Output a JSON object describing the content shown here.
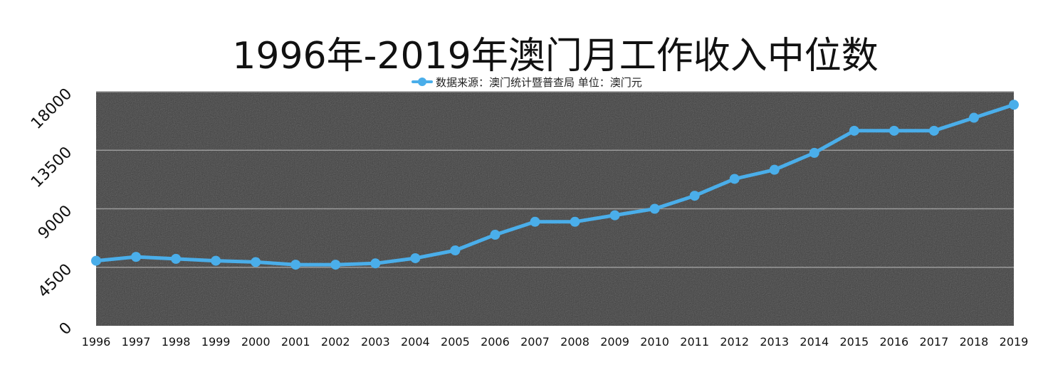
{
  "chart_data": {
    "type": "line",
    "title": "1996年-2019年澳门月工作收入中位数",
    "categories": [
      "1996",
      "1997",
      "1998",
      "1999",
      "2000",
      "2001",
      "2002",
      "2003",
      "2004",
      "2005",
      "2006",
      "2007",
      "2008",
      "2009",
      "2010",
      "2011",
      "2012",
      "2013",
      "2014",
      "2015",
      "2016",
      "2017",
      "2018",
      "2019"
    ],
    "series": [
      {
        "name": "数据来源：澳门统计暨普查局  单位：澳门元",
        "values": [
          5000,
          5300,
          5150,
          5000,
          4900,
          4700,
          4700,
          4800,
          5200,
          5800,
          7000,
          8000,
          8000,
          8500,
          9000,
          10000,
          11300,
          12000,
          13300,
          15000,
          15000,
          15000,
          16000,
          17000
        ]
      }
    ],
    "yticks": [
      0,
      4500,
      9000,
      13500,
      18000
    ],
    "ylim": [
      0,
      18000
    ],
    "grid": true,
    "legend_position": "top-center",
    "colors": {
      "line": "#4aaeea",
      "plot_background": "#3d3d3d",
      "grid": "#9a9a9a"
    }
  }
}
